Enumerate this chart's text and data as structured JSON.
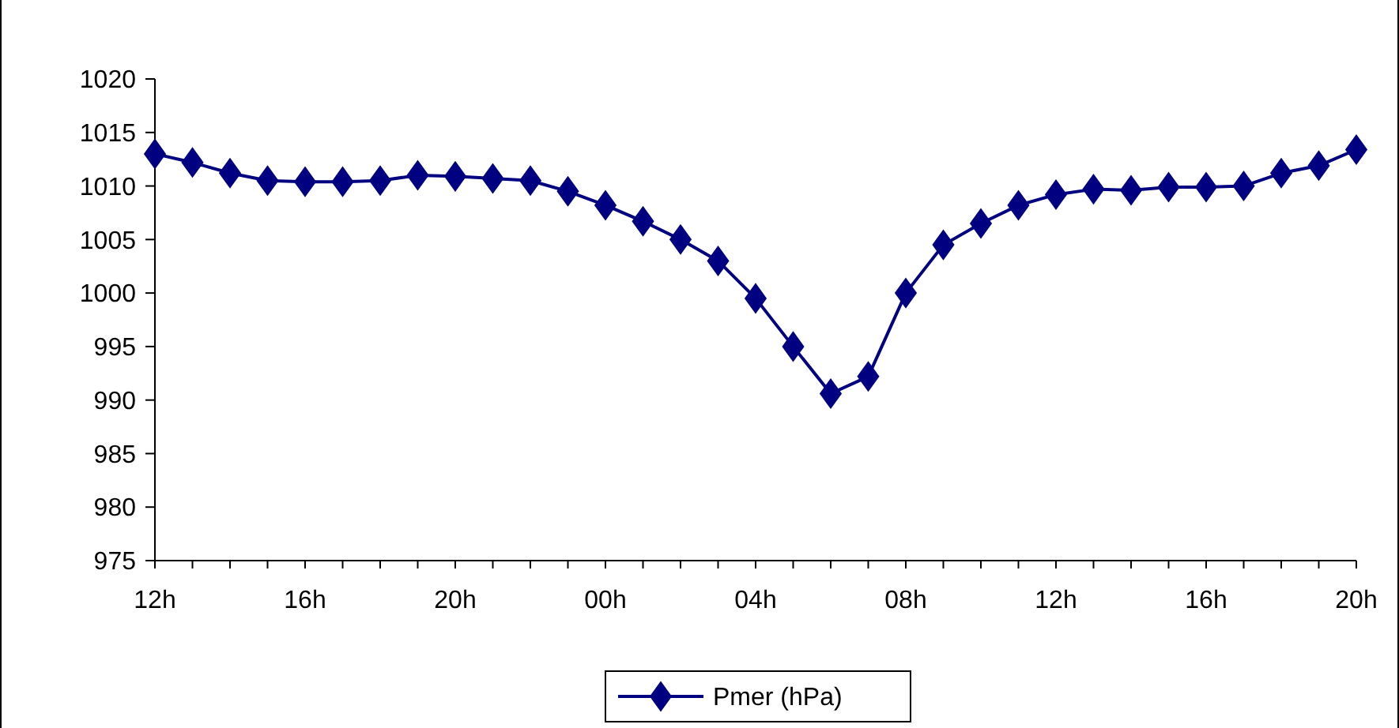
{
  "chart_data": {
    "type": "line",
    "categories": [
      "12h",
      null,
      null,
      null,
      "16h",
      null,
      null,
      null,
      "20h",
      null,
      null,
      null,
      "00h",
      null,
      null,
      null,
      "04h",
      null,
      null,
      null,
      "08h",
      null,
      null,
      null,
      "12h",
      null,
      null,
      null,
      "16h",
      null,
      null,
      null,
      "20h"
    ],
    "series": [
      {
        "name": "Pmer (hPa)",
        "color": "#000080",
        "values": [
          1013,
          1012.2,
          1011.2,
          1010.5,
          1010.4,
          1010.4,
          1010.5,
          1011,
          1010.9,
          1010.7,
          1010.5,
          1009.5,
          1008.2,
          1006.7,
          1005,
          1003,
          999.5,
          995,
          990.6,
          992.2,
          1000,
          1004.5,
          1006.5,
          1008.2,
          1009.2,
          1009.7,
          1009.6,
          1009.9,
          1009.9,
          1010,
          1011.2,
          1011.9,
          1013.4
        ]
      }
    ],
    "ylim": [
      975,
      1020
    ],
    "yticks": [
      975,
      980,
      985,
      990,
      995,
      1000,
      1005,
      1010,
      1015,
      1020
    ],
    "grid": false,
    "legend": "bottom",
    "marker": "diamond",
    "line_style": "solid"
  }
}
